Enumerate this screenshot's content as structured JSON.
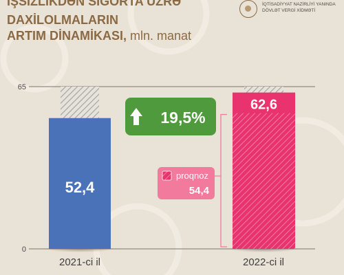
{
  "title": {
    "line1": "İŞSİZLİKDƏN SIĞORTA ÜZRƏ",
    "line2": "DAXİLOLMALARIN",
    "line3_bold": "ARTIM DİNAMİKASI,",
    "line3_light": " mln. manat"
  },
  "organization": {
    "line1": "İQTİSADİYYAT NAZİRLİYİ YANINDA",
    "line2": "DÖVLƏT VERGİ XİDMƏTİ",
    "emblem_icon": "state-emblem-icon"
  },
  "colors": {
    "background": "#e9e2d6",
    "bar_2021": "#4a72b8",
    "bar_2022": "#e8336e",
    "growth_badge": "#4f9a3c",
    "forecast": "#f27a9c",
    "title": "#8b6a43"
  },
  "chart_data": {
    "type": "bar",
    "categories": [
      "2021-ci il",
      "2022-ci il"
    ],
    "values": [
      52.4,
      62.6
    ],
    "value_labels": [
      "52,4",
      "62,6"
    ],
    "ylim": [
      0,
      65
    ],
    "yticks": [
      "0",
      "65"
    ],
    "forecast": {
      "category": "2022-ci il",
      "label": "proqnoz",
      "value": 54.4,
      "value_label": "54,4"
    },
    "growth": {
      "label": "19,5%",
      "direction": "up"
    },
    "grid": false
  }
}
